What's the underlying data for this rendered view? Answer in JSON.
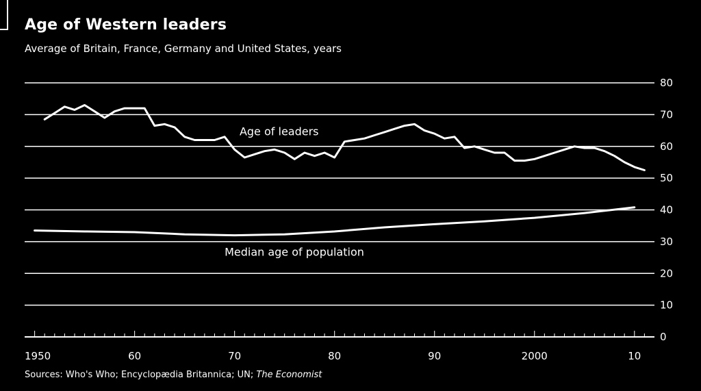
{
  "title": "Age of Western leaders",
  "subtitle": "Average of Britain, France, Germany and United States, years",
  "source_prefix": "Sources: Who's Who; Encyclopædia Britannica; UN; ",
  "source_italic": "The Economist",
  "colors": {
    "background": "#000000",
    "foreground": "#ffffff"
  },
  "chart_data": {
    "type": "line",
    "title": "Age of Western leaders",
    "subtitle": "Average of Britain, France, Germany and United States, years",
    "xlim": [
      1949,
      2012
    ],
    "ylim": [
      0,
      80
    ],
    "yticks": [
      0,
      10,
      20,
      30,
      40,
      50,
      60,
      70,
      80
    ],
    "xtick_labels": [
      {
        "year": 1950,
        "label": "1950"
      },
      {
        "year": 1960,
        "label": "60"
      },
      {
        "year": 1970,
        "label": "70"
      },
      {
        "year": 1980,
        "label": "80"
      },
      {
        "year": 1990,
        "label": "90"
      },
      {
        "year": 2000,
        "label": "2000"
      },
      {
        "year": 2010,
        "label": "10"
      }
    ],
    "grid": true,
    "series": [
      {
        "name": "Age of leaders",
        "label_at": {
          "x": 1970.5,
          "y": 63.5
        },
        "x": [
          1951,
          1952,
          1953,
          1954,
          1955,
          1956,
          1957,
          1958,
          1959,
          1960,
          1961,
          1962,
          1963,
          1964,
          1965,
          1966,
          1967,
          1968,
          1969,
          1970,
          1971,
          1972,
          1973,
          1974,
          1975,
          1976,
          1977,
          1978,
          1979,
          1980,
          1981,
          1982,
          1983,
          1984,
          1985,
          1986,
          1987,
          1988,
          1989,
          1990,
          1991,
          1992,
          1993,
          1994,
          1995,
          1996,
          1997,
          1998,
          1999,
          2000,
          2001,
          2002,
          2003,
          2004,
          2005,
          2006,
          2007,
          2008,
          2009,
          2010,
          2011
        ],
        "y": [
          68.5,
          70.5,
          72.5,
          71.5,
          73.0,
          71.0,
          69.0,
          71.0,
          72.0,
          72.0,
          72.0,
          66.5,
          67.0,
          66.0,
          63.0,
          62.0,
          62.0,
          62.0,
          63.0,
          59.0,
          56.5,
          57.5,
          58.5,
          59.0,
          58.0,
          56.0,
          58.0,
          57.0,
          58.0,
          56.5,
          61.5,
          62.0,
          62.5,
          63.5,
          64.5,
          65.5,
          66.5,
          67.0,
          65.0,
          64.0,
          62.5,
          63.0,
          59.5,
          60.0,
          59.0,
          58.0,
          58.0,
          55.5,
          55.5,
          56.0,
          57.0,
          58.0,
          59.0,
          60.0,
          59.5,
          59.5,
          58.5,
          57.0,
          55.0,
          53.5,
          52.5
        ]
      },
      {
        "name": "Median age of population",
        "label_at": {
          "x": 1969,
          "y": 25.5
        },
        "x": [
          1950,
          1955,
          1960,
          1965,
          1970,
          1975,
          1980,
          1985,
          1990,
          1995,
          2000,
          2005,
          2010
        ],
        "y": [
          33.5,
          33.2,
          33.0,
          32.3,
          32.0,
          32.3,
          33.2,
          34.5,
          35.5,
          36.4,
          37.5,
          39.0,
          40.8
        ]
      }
    ]
  }
}
